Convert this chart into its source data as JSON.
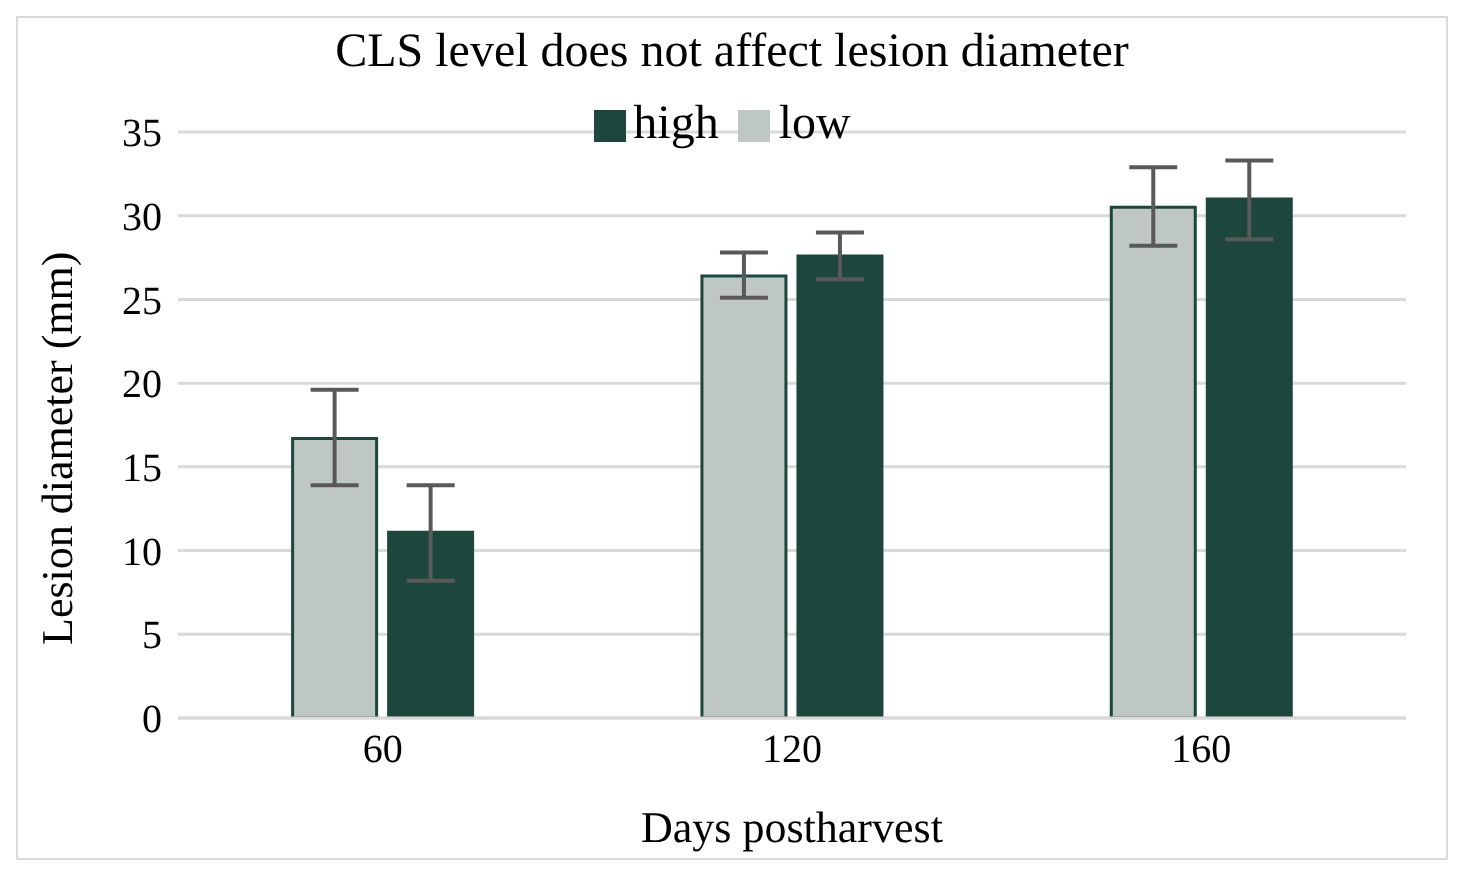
{
  "chart_data": {
    "type": "bar",
    "title": "CLS level does not affect lesion diameter",
    "xlabel": "Days postharvest",
    "ylabel": "Lesion diameter (mm)",
    "categories": [
      "60",
      "120",
      "160"
    ],
    "series": [
      {
        "name": "low",
        "color": "#bec7c3",
        "values": [
          16.7,
          26.4,
          30.5
        ],
        "errors": [
          [
            13.9,
            19.6
          ],
          [
            25.1,
            27.8
          ],
          [
            28.2,
            32.9
          ]
        ]
      },
      {
        "name": "high",
        "color": "#1d473c",
        "values": [
          11.1,
          27.6,
          31.0
        ],
        "errors": [
          [
            8.2,
            13.9
          ],
          [
            26.2,
            29.0
          ],
          [
            28.6,
            33.3
          ]
        ]
      }
    ],
    "ylim": [
      0,
      35
    ],
    "yticks": [
      0,
      5,
      10,
      15,
      20,
      25,
      30,
      35
    ],
    "grid": "y",
    "legend": "top"
  }
}
